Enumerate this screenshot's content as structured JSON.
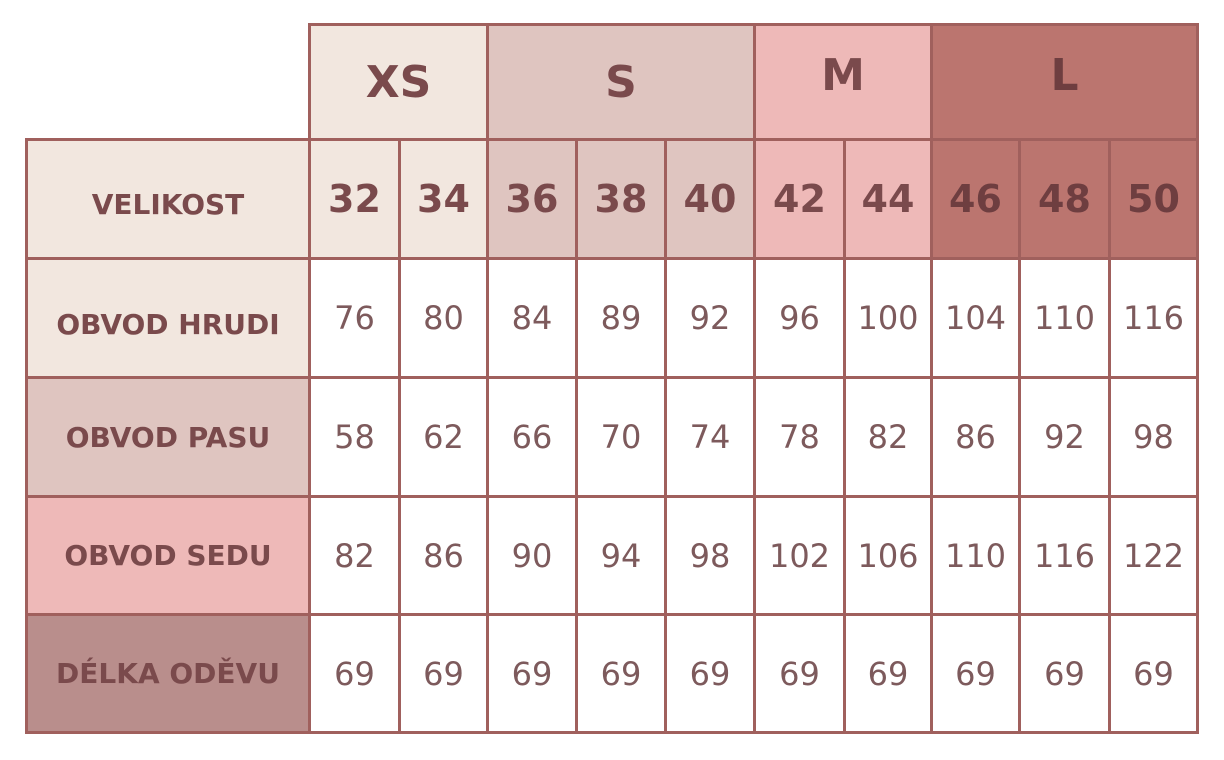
{
  "groups": [
    {
      "label": "XS",
      "color": "#f2e7df"
    },
    {
      "label": "S",
      "color": "#dfc5c0"
    },
    {
      "label": "M",
      "color": "#eeb9b8"
    },
    {
      "label": "L",
      "color": "#bb756f"
    }
  ],
  "rows": [
    {
      "label": "VELIKOST",
      "values": [
        "32",
        "34",
        "36",
        "38",
        "40",
        "42",
        "44",
        "46",
        "48",
        "50"
      ]
    },
    {
      "label": "OBVOD HRUDI",
      "values": [
        "76",
        "80",
        "84",
        "89",
        "92",
        "96",
        "100",
        "104",
        "110",
        "116"
      ]
    },
    {
      "label": "OBVOD PASU",
      "values": [
        "58",
        "62",
        "66",
        "70",
        "74",
        "78",
        "82",
        "86",
        "92",
        "98"
      ]
    },
    {
      "label": "OBVOD SEDU",
      "values": [
        "82",
        "86",
        "90",
        "94",
        "98",
        "102",
        "106",
        "110",
        "116",
        "122"
      ]
    },
    {
      "label": "DÉLKA ODĚVU",
      "values": [
        "69",
        "69",
        "69",
        "69",
        "69",
        "69",
        "69",
        "69",
        "69",
        "69"
      ]
    }
  ],
  "colors": {
    "border": "#a0605d",
    "text": "#7a4a4c",
    "row_label_backgrounds": [
      "#f2e7df",
      "#f2e7df",
      "#dfc5c0",
      "#eeb9b8",
      "#b98e8c"
    ]
  }
}
